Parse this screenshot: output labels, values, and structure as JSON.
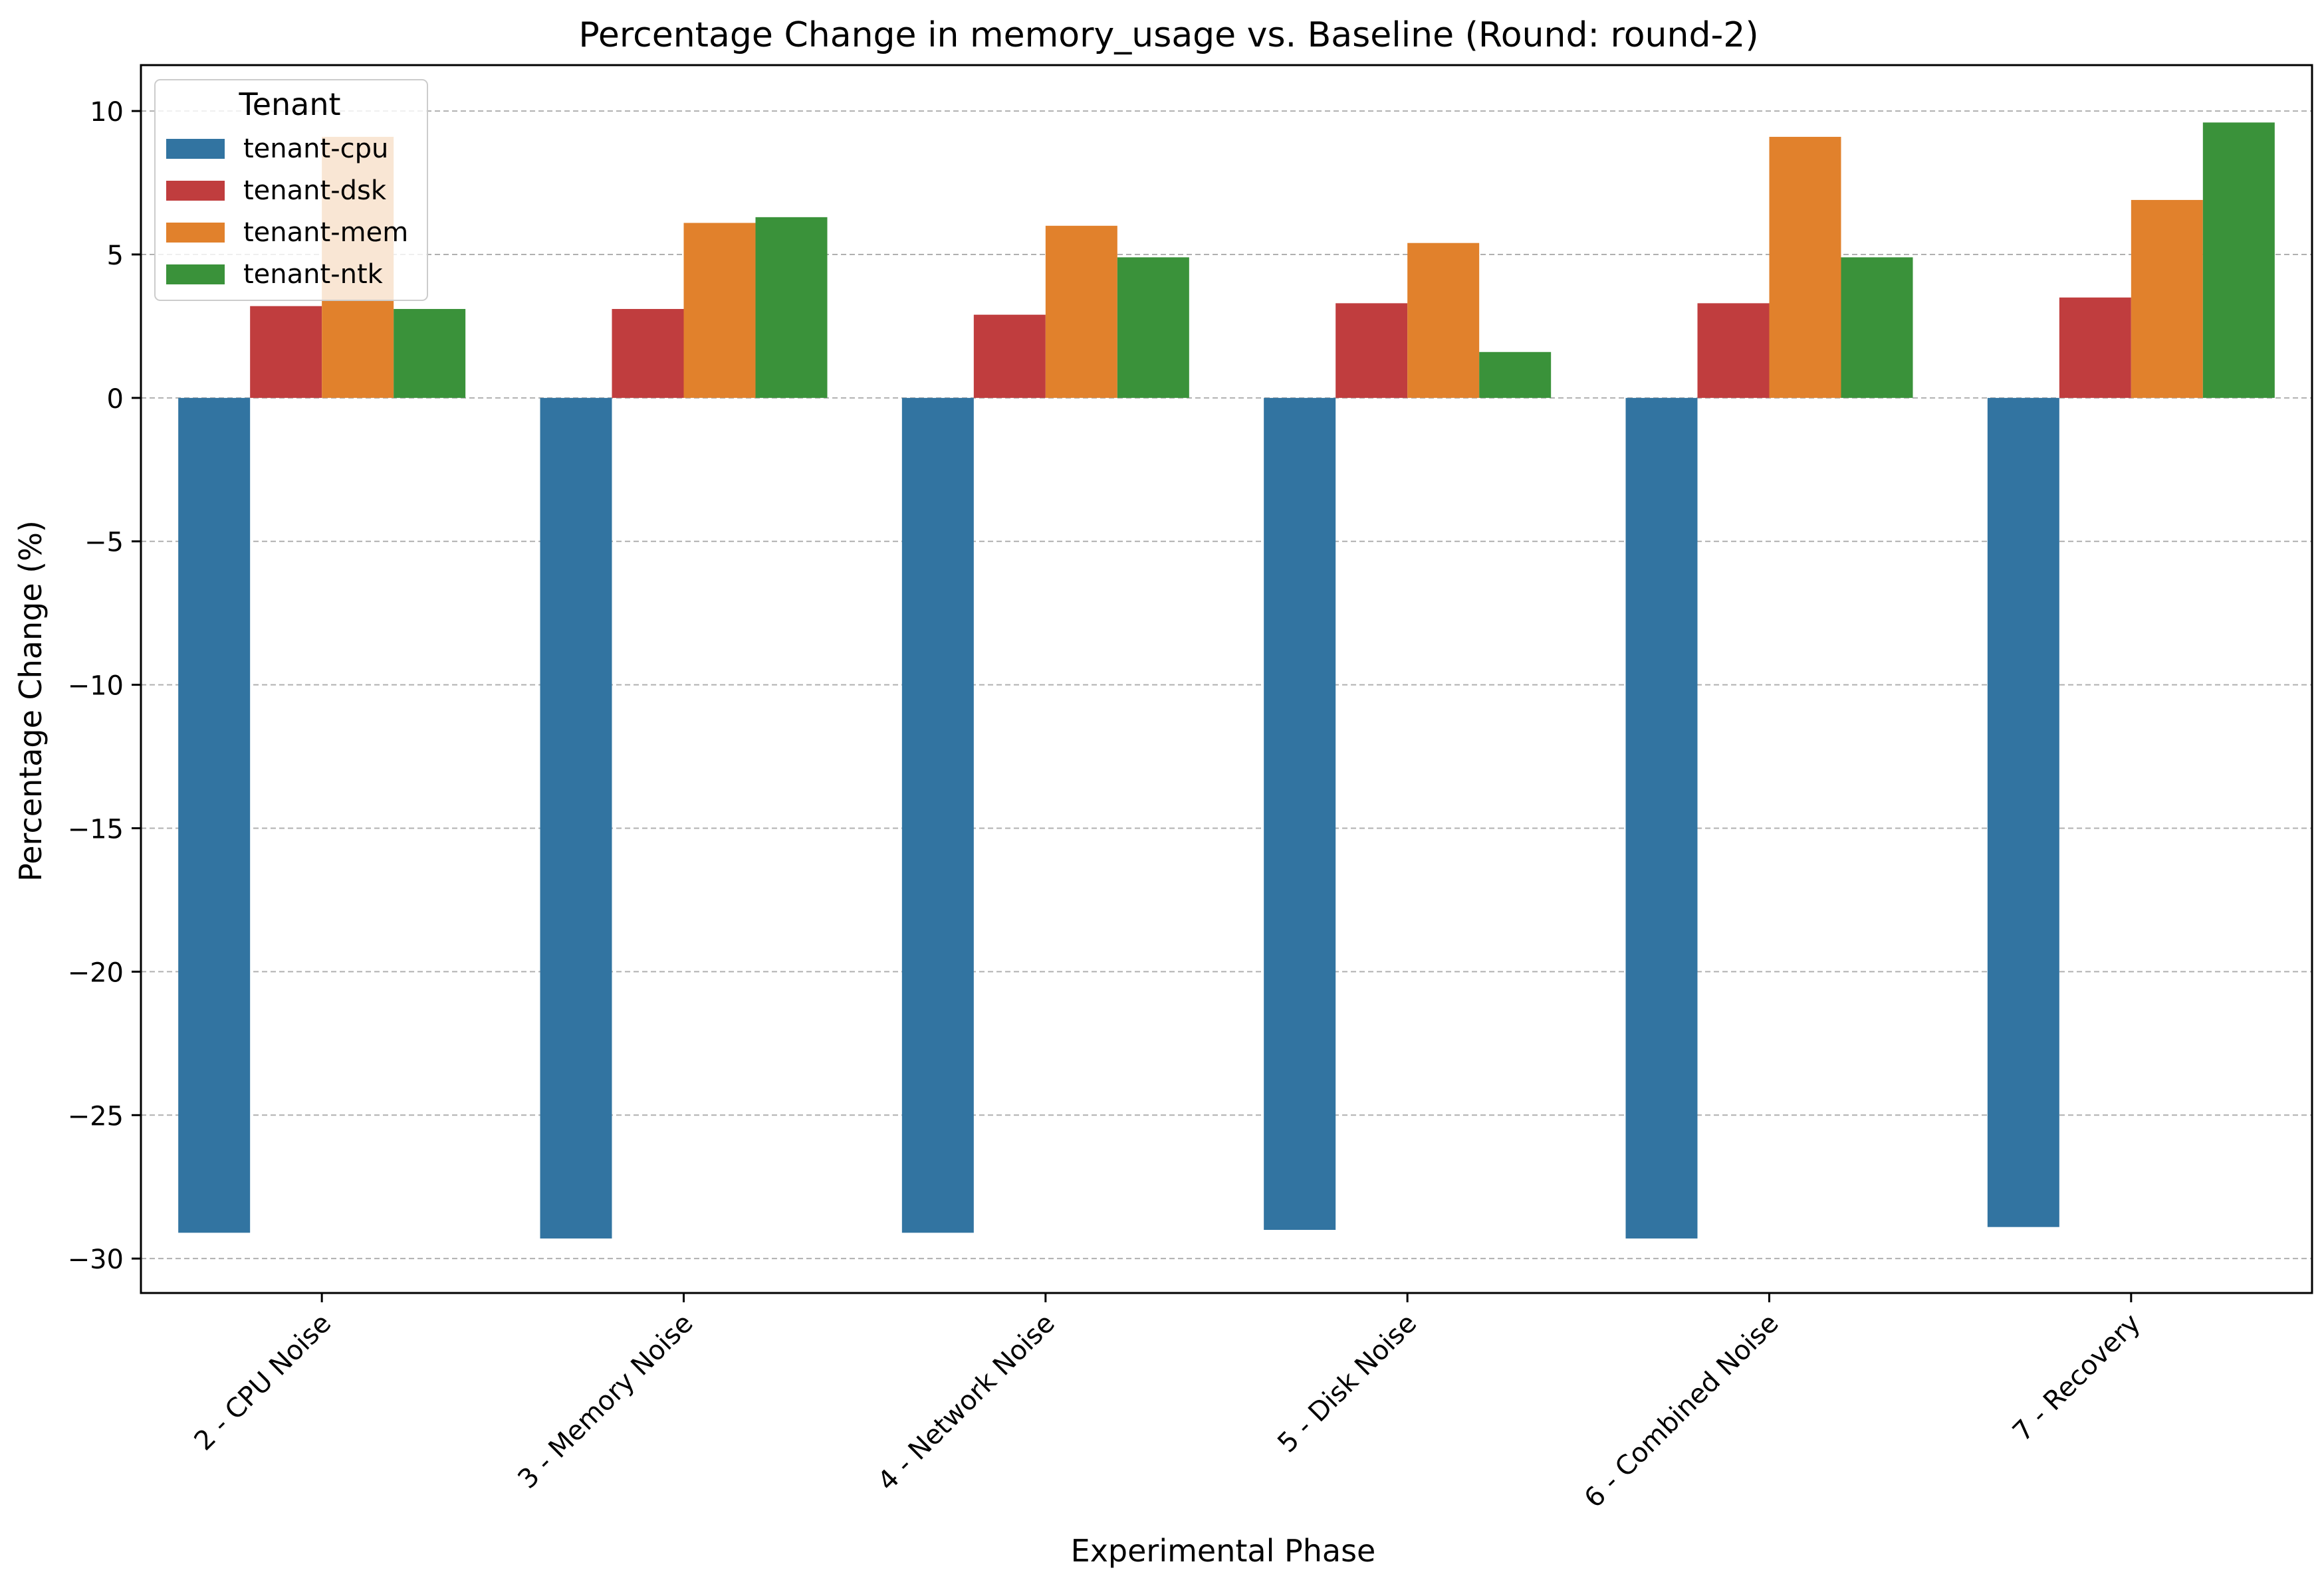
{
  "chart_data": {
    "type": "bar",
    "title": "Percentage Change in memory_usage vs. Baseline (Round: round-2)",
    "xlabel": "Experimental Phase",
    "ylabel": "Percentage Change (%)",
    "ylim": [
      -31.2,
      11.6
    ],
    "yticks": [
      10,
      5,
      0,
      -5,
      -10,
      -15,
      -20,
      -25,
      -30
    ],
    "ytick_labels": [
      "10",
      "5",
      "0",
      "−5",
      "−10",
      "−15",
      "−20",
      "−25",
      "−30"
    ],
    "grid": "horizontal dashed",
    "legend_title": "Tenant",
    "legend_position": "top-left",
    "categories": [
      "2 - CPU Noise",
      "3 - Memory Noise",
      "4 - Network Noise",
      "5 - Disk Noise",
      "6 - Combined Noise",
      "7 - Recovery"
    ],
    "series": [
      {
        "name": "tenant-cpu",
        "color": "#3274a1",
        "values": [
          -29.1,
          -29.3,
          -29.1,
          -29.0,
          -29.3,
          -28.9
        ]
      },
      {
        "name": "tenant-dsk",
        "color": "#c03d3e",
        "values": [
          3.2,
          3.1,
          2.9,
          3.3,
          3.3,
          3.5
        ]
      },
      {
        "name": "tenant-mem",
        "color": "#e1812c",
        "values": [
          9.1,
          6.1,
          6.0,
          5.4,
          9.1,
          6.9
        ]
      },
      {
        "name": "tenant-ntk",
        "color": "#3a923a",
        "values": [
          3.1,
          6.3,
          4.9,
          1.6,
          4.9,
          9.6
        ]
      }
    ]
  }
}
